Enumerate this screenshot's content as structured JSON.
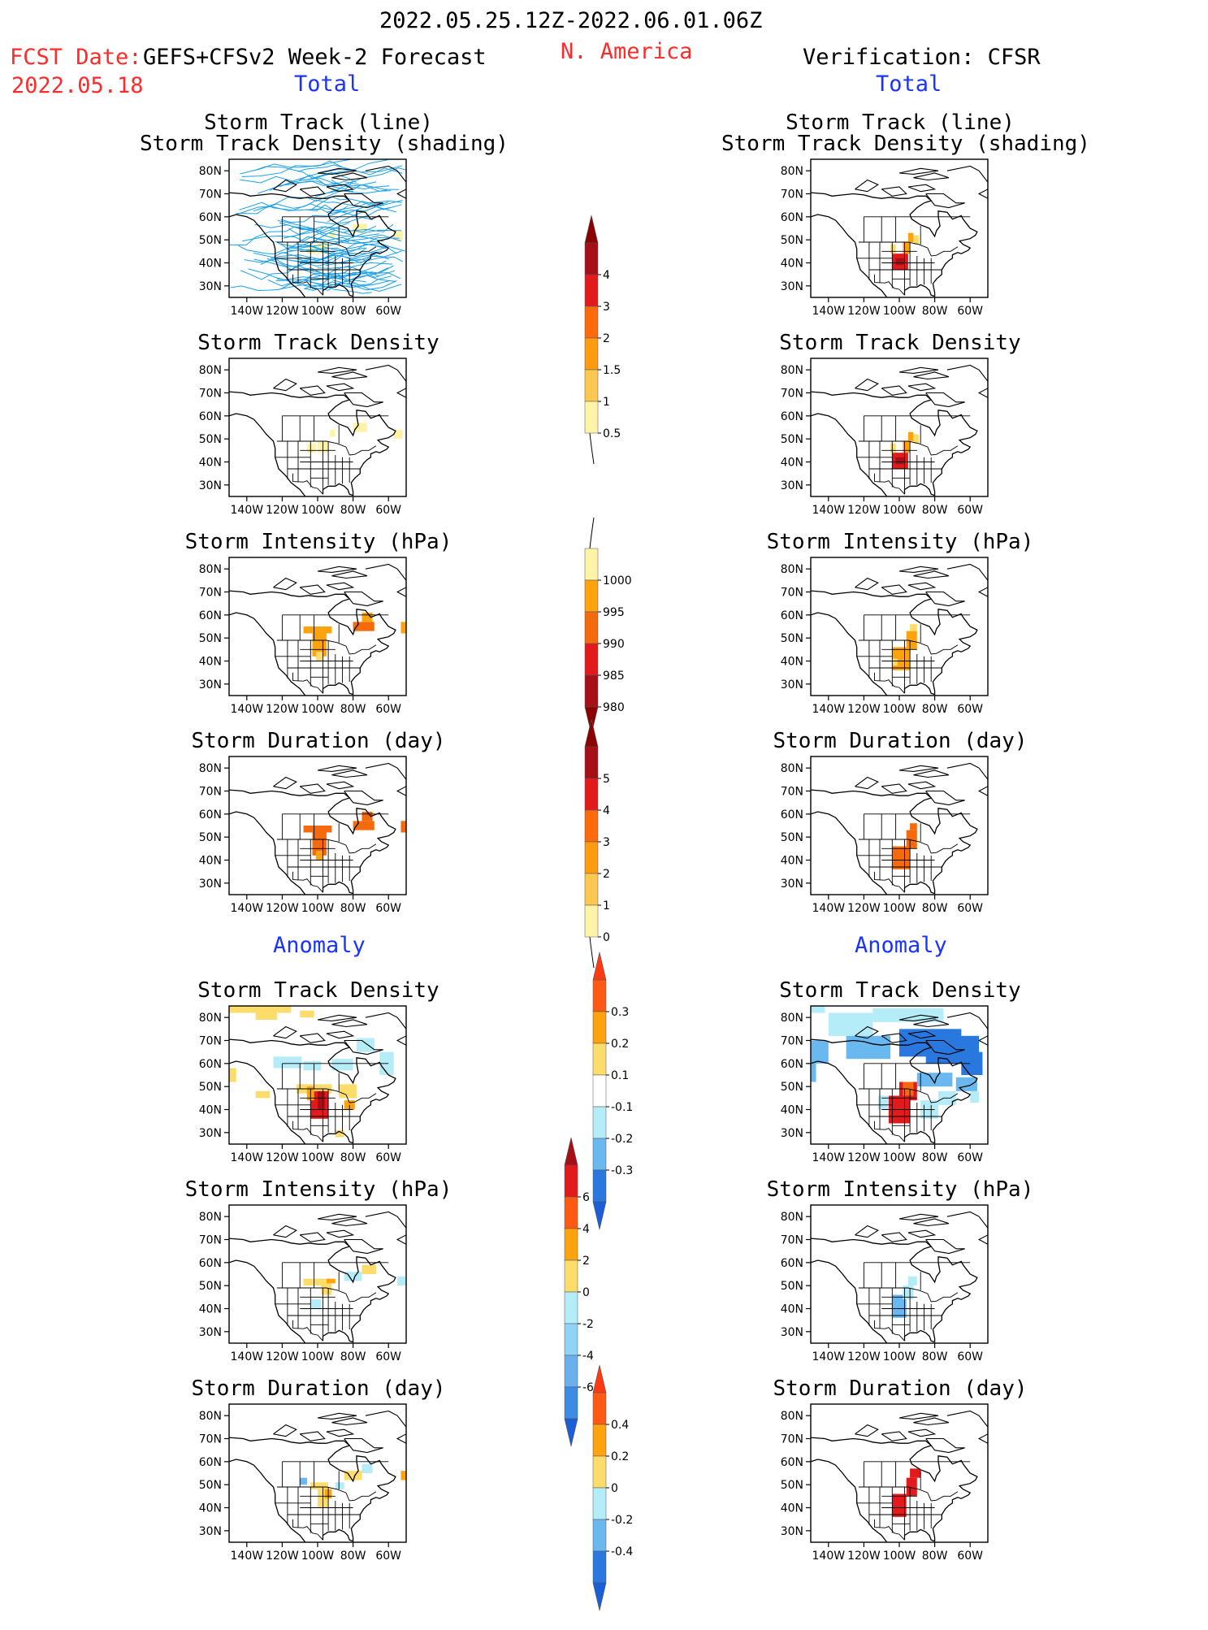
{
  "header": {
    "period": "2022.05.25.12Z-2022.06.01.06Z",
    "fcst_label": "FCST Date:",
    "fcst_model": "GEFS+CFSv2 Week-2 Forecast",
    "fcst_date": "2022.05.18",
    "region": "N. America",
    "verification": "Verification: CFSR",
    "left_section": "Total",
    "right_section": "Total",
    "left_anomaly": "Anomaly",
    "right_anomaly": "Anomaly"
  },
  "axes": {
    "lat_ticks": [
      "80N",
      "70N",
      "60N",
      "50N",
      "40N",
      "30N"
    ],
    "lon_ticks": [
      "140W",
      "120W",
      "100W",
      "80W",
      "60W"
    ]
  },
  "panels": {
    "left": [
      {
        "title1": "Storm Track (line)",
        "title2": "Storm Track Density (shading)"
      },
      {
        "title1": "Storm Track Density"
      },
      {
        "title1": "Storm Intensity (hPa)"
      },
      {
        "title1": "Storm Duration (day)"
      },
      {
        "title1": "Storm Track Density"
      },
      {
        "title1": "Storm Intensity (hPa)"
      },
      {
        "title1": "Storm Duration (day)"
      }
    ],
    "right": [
      {
        "title1": "Storm Track (line)",
        "title2": "Storm Track Density (shading)"
      },
      {
        "title1": "Storm Track Density"
      },
      {
        "title1": "Storm Intensity (hPa)"
      },
      {
        "title1": "Storm Duration (day)"
      },
      {
        "title1": "Storm Track Density"
      },
      {
        "title1": "Storm Intensity (hPa)"
      },
      {
        "title1": "Storm Duration (day)"
      }
    ]
  },
  "colorbars": [
    {
      "labels": [
        "4",
        "3",
        "2",
        "1.5",
        "1",
        "0.5"
      ],
      "colors": [
        "#a50f15",
        "#e31a1c",
        "#fd6a0c",
        "#fd9a0e",
        "#fcc84f",
        "#fff3a8"
      ],
      "arrow_top": "#8b0000",
      "tail": "bottom"
    },
    {
      "labels": [
        "1000",
        "995",
        "990",
        "985",
        "980"
      ],
      "colors": [
        "#fff3a8",
        "#fca30e",
        "#f46a0c",
        "#e31a1c",
        "#a50f15"
      ],
      "arrow_bottom": "#8b0000",
      "tail": "top"
    },
    {
      "labels": [
        "5",
        "4",
        "3",
        "2",
        "1",
        "0"
      ],
      "colors": [
        "#a50f15",
        "#e31a1c",
        "#fd6a0c",
        "#fd9a0e",
        "#fcc84f",
        "#fff3a8"
      ],
      "arrow_top": "#8b0000",
      "tail": "bottom"
    },
    {
      "labels": [
        "0.3",
        "0.2",
        "0.1",
        "-0.1",
        "-0.2",
        "-0.3"
      ],
      "colors": [
        "#ff5a14",
        "#fca30e",
        "#fcdc6a",
        "#ffffff",
        "#b4ecf8",
        "#6ab8f0",
        "#2878e0"
      ],
      "arrow_top": "#ff3a10",
      "arrow_bottom": "#1a5fd8"
    },
    {
      "labels": [
        "6",
        "4",
        "2",
        "0",
        "-2",
        "-4",
        "-6"
      ],
      "colors": [
        "#e31a1c",
        "#ff5a14",
        "#fca30e",
        "#fcdc6a",
        "#b4ecf8",
        "#8fd4f4",
        "#6ab0ee",
        "#3c8ce6"
      ],
      "arrow_top": "#a50f15",
      "arrow_bottom": "#1a5fd8"
    },
    {
      "labels": [
        "0.4",
        "0.2",
        "0",
        "-0.2",
        "-0.4"
      ],
      "colors": [
        "#ff5a14",
        "#fca30e",
        "#fcdc6a",
        "#b4ecf8",
        "#6ab8f0",
        "#2878e0"
      ],
      "arrow_top": "#ff3a10",
      "arrow_bottom": "#1a5fd8"
    }
  ],
  "palette": {
    "yellow": "#fcdc6a",
    "lightyellow": "#fff3a8",
    "orange": "#fca30e",
    "darkorange": "#f46a0c",
    "red": "#e31a1c",
    "darkred": "#a50f15",
    "lightblue": "#b4ecf8",
    "midblue": "#6ab8f0",
    "blue": "#2878e0",
    "deepblue": "#1a5fd8",
    "track": "#1aa0e8"
  }
}
